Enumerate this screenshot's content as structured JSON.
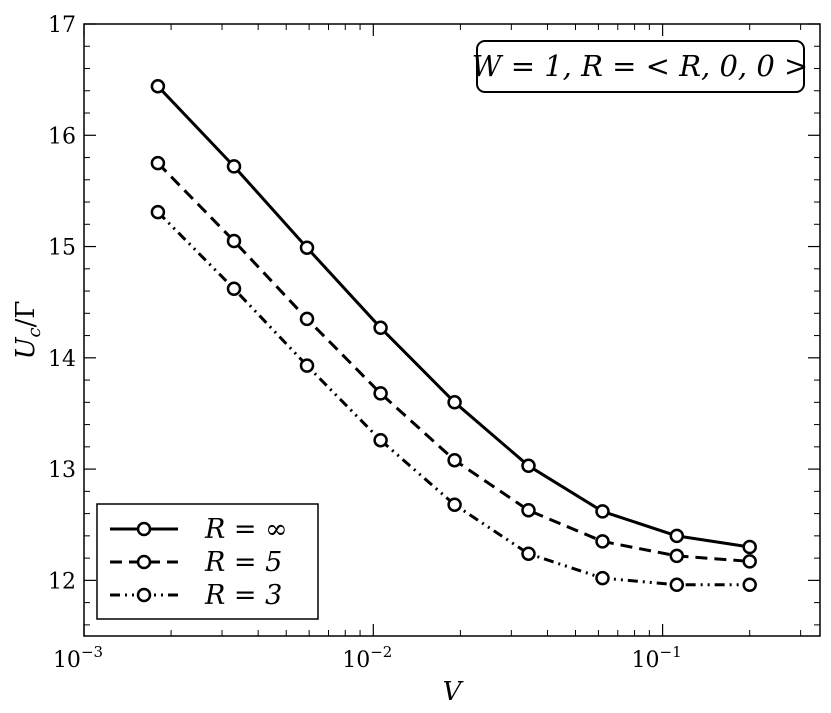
{
  "chart_data": {
    "type": "line",
    "xscale": "log",
    "xlim": [
      0.001,
      0.35
    ],
    "ylim": [
      11.5,
      17
    ],
    "x_ticks": [
      {
        "value": 0.001,
        "base": "10",
        "exp": "−3"
      },
      {
        "value": 0.01,
        "base": "10",
        "exp": "−2"
      },
      {
        "value": 0.1,
        "base": "10",
        "exp": "−1"
      }
    ],
    "y_ticks": [
      {
        "value": 12,
        "label": "12"
      },
      {
        "value": 13,
        "label": "13"
      },
      {
        "value": 14,
        "label": "14"
      },
      {
        "value": 15,
        "label": "15"
      },
      {
        "value": 16,
        "label": "16"
      },
      {
        "value": 17,
        "label": "17"
      }
    ],
    "xlabel": "V",
    "ylabel": {
      "main": "U",
      "sub": "c",
      "rest": "/Γ"
    },
    "annotation": "W = 1, R = < R, 0, 0 >",
    "grid": false,
    "legend_position": "lower-left",
    "x": [
      0.0018,
      0.0033,
      0.0059,
      0.0106,
      0.0191,
      0.0344,
      0.062,
      0.112,
      0.2
    ],
    "series": [
      {
        "name": "R = ∞",
        "style": "solid",
        "values": [
          16.44,
          15.72,
          14.99,
          14.27,
          13.6,
          13.03,
          12.62,
          12.4,
          12.3
        ]
      },
      {
        "name": "R = 5",
        "style": "dashed",
        "values": [
          15.75,
          15.05,
          14.35,
          13.68,
          13.08,
          12.63,
          12.35,
          12.22,
          12.17
        ]
      },
      {
        "name": "R = 3",
        "style": "dashdotdot",
        "values": [
          15.31,
          14.62,
          13.93,
          13.26,
          12.68,
          12.24,
          12.02,
          11.96,
          11.96
        ]
      }
    ]
  }
}
